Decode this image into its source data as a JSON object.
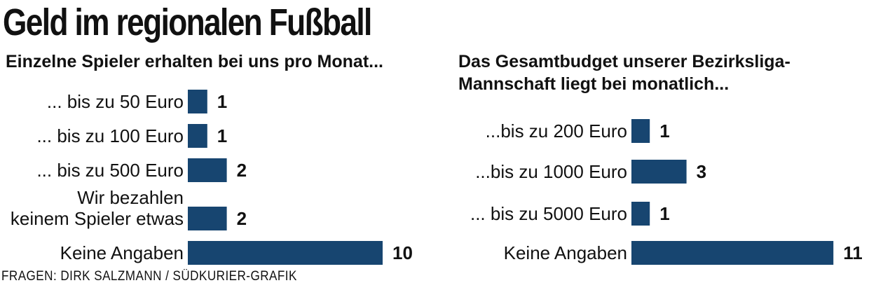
{
  "title": "Geld im regionalen Fußball",
  "footer": "FRAGEN: DIRK SALZMANN / SÜDKURIER-GRAFIK",
  "colors": {
    "bar": "#174570",
    "text": "#111111",
    "background": "#ffffff"
  },
  "chart_data": [
    {
      "type": "bar",
      "orientation": "horizontal",
      "title": "Einzelne Spieler erhalten bei uns pro Monat...",
      "categories": [
        "... bis zu 50 Euro",
        "... bis zu 100 Euro",
        "... bis zu 500 Euro",
        [
          "Wir bezahlen",
          "keinem Spieler etwas"
        ],
        "Keine Angaben"
      ],
      "values": [
        1,
        1,
        2,
        2,
        10
      ],
      "data_labels": [
        "1",
        "1",
        "2",
        "2",
        "10"
      ],
      "xlabel": "",
      "ylabel": "",
      "grid": false,
      "legend": "none"
    },
    {
      "type": "bar",
      "orientation": "horizontal",
      "title": [
        "Das Gesamtbudget unserer Bezirksliga-",
        "Mannschaft liegt bei monatlich..."
      ],
      "categories": [
        "...bis zu 200 Euro",
        "...bis zu 1000 Euro",
        "... bis zu 5000 Euro",
        "Keine Angaben"
      ],
      "values": [
        1,
        3,
        1,
        11
      ],
      "data_labels": [
        "1",
        "3",
        "1",
        "11"
      ],
      "xlabel": "",
      "ylabel": "",
      "grid": false,
      "legend": "none"
    }
  ]
}
